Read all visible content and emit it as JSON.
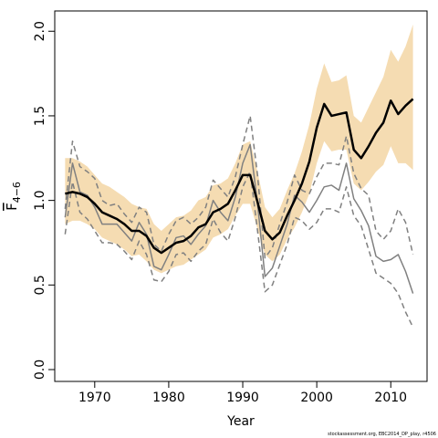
{
  "chart_data": {
    "type": "line",
    "xlabel": "Year",
    "ylabel": "F",
    "ylabel_sub": "4−6",
    "footnote": "stockassessment.org, EBC2014_DP_play, r4506",
    "x": [
      1966,
      1967,
      1968,
      1969,
      1970,
      1971,
      1972,
      1973,
      1974,
      1975,
      1976,
      1977,
      1978,
      1979,
      1980,
      1981,
      1982,
      1983,
      1984,
      1985,
      1986,
      1987,
      1988,
      1989,
      1990,
      1991,
      1992,
      1993,
      1994,
      1995,
      1996,
      1997,
      1998,
      1999,
      2000,
      2001,
      2002,
      2003,
      2004,
      2005,
      2006,
      2007,
      2008,
      2009,
      2010,
      2011,
      2012,
      2013
    ],
    "band": {
      "color": "#f5dcb2",
      "upper": [
        1.25,
        1.25,
        1.23,
        1.2,
        1.15,
        1.1,
        1.08,
        1.05,
        1.02,
        0.98,
        0.96,
        0.95,
        0.86,
        0.82,
        0.86,
        0.9,
        0.91,
        0.94,
        1.0,
        1.02,
        1.09,
        1.1,
        1.13,
        1.22,
        1.33,
        1.35,
        1.17,
        0.96,
        0.9,
        0.95,
        1.06,
        1.16,
        1.29,
        1.45,
        1.66,
        1.81,
        1.7,
        1.71,
        1.74,
        1.5,
        1.46,
        1.55,
        1.64,
        1.73,
        1.89,
        1.82,
        1.91,
        2.04
      ],
      "lower": [
        0.86,
        0.88,
        0.88,
        0.86,
        0.83,
        0.78,
        0.76,
        0.74,
        0.71,
        0.67,
        0.68,
        0.64,
        0.59,
        0.57,
        0.59,
        0.61,
        0.62,
        0.65,
        0.68,
        0.71,
        0.78,
        0.8,
        0.83,
        0.91,
        0.98,
        0.98,
        0.83,
        0.68,
        0.64,
        0.68,
        0.77,
        0.84,
        0.93,
        1.04,
        1.22,
        1.35,
        1.29,
        1.3,
        1.3,
        1.1,
        1.06,
        1.11,
        1.17,
        1.21,
        1.32,
        1.22,
        1.22,
        1.18
      ]
    },
    "series": [
      {
        "color": "#808080",
        "dash": true,
        "width": 1.5,
        "values": [
          0.95,
          1.35,
          1.2,
          1.17,
          1.13,
          1.0,
          0.97,
          0.98,
          0.92,
          0.87,
          0.96,
          0.93,
          0.74,
          0.7,
          0.8,
          0.88,
          0.9,
          0.86,
          0.9,
          0.96,
          1.12,
          1.07,
          1.02,
          1.14,
          1.33,
          1.5,
          1.15,
          0.66,
          0.72,
          0.86,
          0.99,
          1.15,
          1.06,
          1.04,
          1.14,
          1.22,
          1.22,
          1.21,
          1.38,
          1.16,
          1.07,
          1.03,
          0.82,
          0.77,
          0.82,
          0.95,
          0.87,
          0.68
        ]
      },
      {
        "color": "#808080",
        "dash": true,
        "width": 1.5,
        "values": [
          0.8,
          1.11,
          0.93,
          0.89,
          0.82,
          0.75,
          0.75,
          0.74,
          0.7,
          0.65,
          0.76,
          0.68,
          0.53,
          0.52,
          0.58,
          0.68,
          0.69,
          0.64,
          0.7,
          0.74,
          0.89,
          0.81,
          0.76,
          0.9,
          1.08,
          1.17,
          0.82,
          0.46,
          0.5,
          0.62,
          0.74,
          0.9,
          0.88,
          0.83,
          0.87,
          0.95,
          0.95,
          0.93,
          1.08,
          0.91,
          0.85,
          0.71,
          0.57,
          0.54,
          0.51,
          0.45,
          0.34,
          0.25
        ]
      },
      {
        "color": "#808080",
        "dash": false,
        "width": 1.5,
        "values": [
          0.9,
          1.22,
          1.05,
          1.03,
          0.96,
          0.86,
          0.86,
          0.86,
          0.81,
          0.76,
          0.87,
          0.8,
          0.61,
          0.59,
          0.68,
          0.78,
          0.79,
          0.74,
          0.8,
          0.85,
          1.0,
          0.93,
          0.88,
          1.02,
          1.22,
          1.33,
          0.98,
          0.55,
          0.6,
          0.73,
          0.86,
          1.03,
          0.99,
          0.93,
          1.0,
          1.08,
          1.09,
          1.06,
          1.22,
          1.01,
          0.94,
          0.85,
          0.67,
          0.64,
          0.65,
          0.68,
          0.58,
          0.45
        ]
      },
      {
        "color": "#000000",
        "dash": false,
        "width": 2.5,
        "values": [
          1.04,
          1.05,
          1.04,
          1.02,
          0.98,
          0.93,
          0.91,
          0.89,
          0.86,
          0.82,
          0.82,
          0.79,
          0.72,
          0.69,
          0.72,
          0.75,
          0.76,
          0.79,
          0.84,
          0.86,
          0.93,
          0.95,
          0.98,
          1.06,
          1.15,
          1.15,
          0.99,
          0.82,
          0.77,
          0.81,
          0.91,
          1.0,
          1.1,
          1.23,
          1.43,
          1.57,
          1.5,
          1.51,
          1.52,
          1.3,
          1.25,
          1.32,
          1.4,
          1.46,
          1.59,
          1.51,
          1.56,
          1.6
        ]
      }
    ],
    "xlim": [
      1964.6,
      2014.9
    ],
    "ylim": [
      -0.07,
      2.12
    ],
    "xticks": [
      1970,
      1980,
      1990,
      2000,
      2010
    ],
    "yticks": [
      {
        "value": 0,
        "label": "0.0"
      },
      {
        "value": 0.5,
        "label": "0.5"
      },
      {
        "value": 1,
        "label": "1.0"
      },
      {
        "value": 1.5,
        "label": "1.5"
      },
      {
        "value": 2,
        "label": "2.0"
      }
    ]
  }
}
